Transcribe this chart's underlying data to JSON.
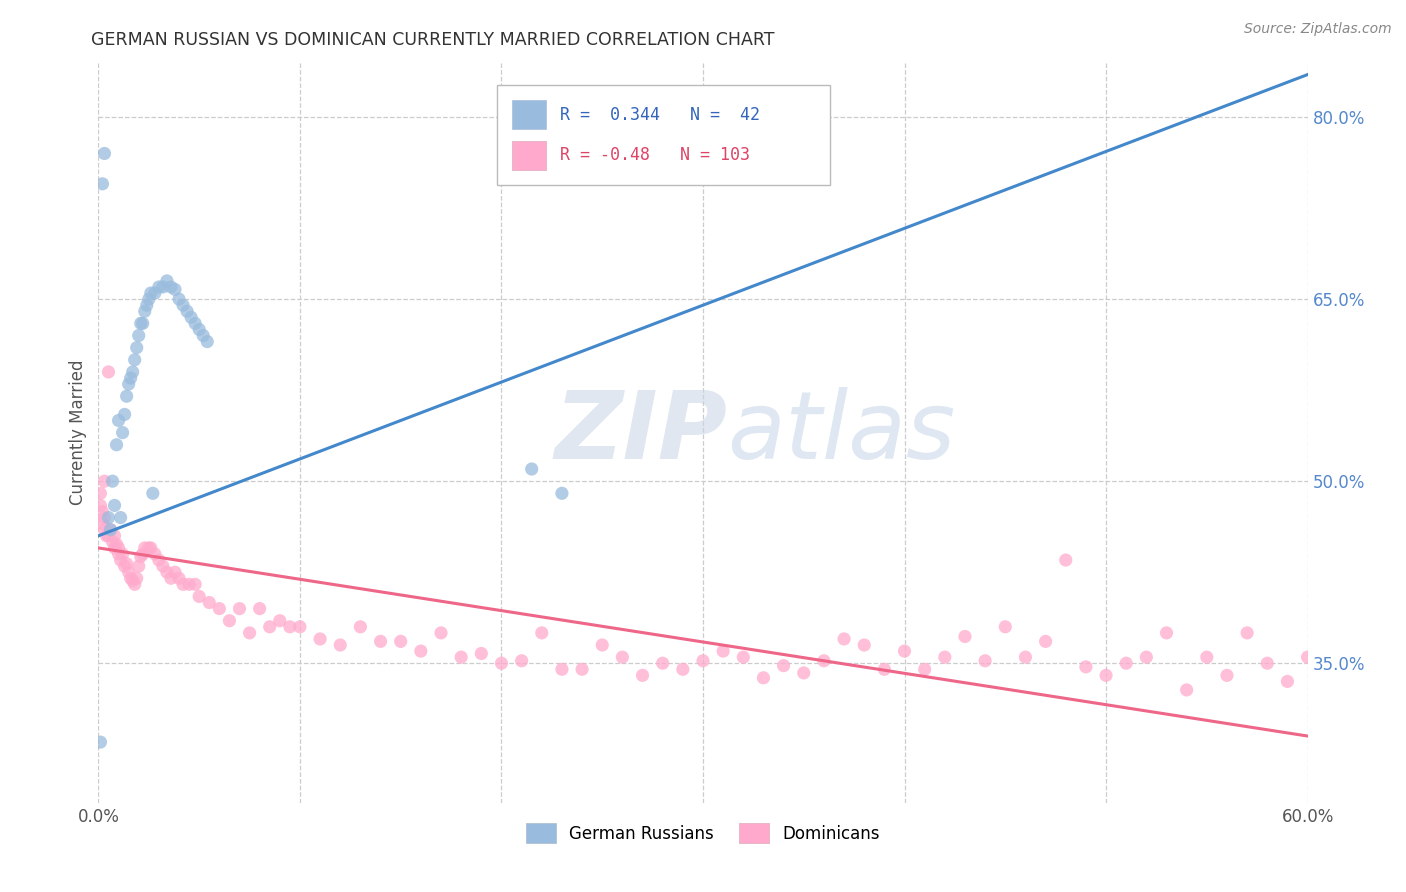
{
  "title": "GERMAN RUSSIAN VS DOMINICAN CURRENTLY MARRIED CORRELATION CHART",
  "source": "Source: ZipAtlas.com",
  "ylabel": "Currently Married",
  "xlim": [
    0.0,
    0.6
  ],
  "ylim": [
    0.235,
    0.845
  ],
  "x_ticks": [
    0.0,
    0.1,
    0.2,
    0.3,
    0.4,
    0.5,
    0.6
  ],
  "x_tick_labels": [
    "0.0%",
    "",
    "",
    "",
    "",
    "",
    "60.0%"
  ],
  "y_ticks_right": [
    0.35,
    0.5,
    0.65,
    0.8
  ],
  "y_tick_labels_right": [
    "35.0%",
    "50.0%",
    "65.0%",
    "80.0%"
  ],
  "legend_label1": "German Russians",
  "legend_label2": "Dominicans",
  "R1": 0.344,
  "N1": 42,
  "R2": -0.48,
  "N2": 103,
  "blue_color": "#99BBDD",
  "pink_color": "#FFAACC",
  "blue_line_color": "#4488CC",
  "pink_line_color": "#EE6688",
  "watermark_zip": "ZIP",
  "watermark_atlas": "atlas",
  "gr_x": [
    0.005,
    0.007,
    0.009,
    0.01,
    0.012,
    0.013,
    0.014,
    0.015,
    0.016,
    0.017,
    0.018,
    0.019,
    0.02,
    0.021,
    0.022,
    0.023,
    0.024,
    0.025,
    0.026,
    0.028,
    0.03,
    0.032,
    0.034,
    0.036,
    0.038,
    0.04,
    0.042,
    0.044,
    0.046,
    0.048,
    0.05,
    0.052,
    0.054,
    0.003,
    0.002,
    0.001,
    0.008,
    0.006,
    0.215,
    0.23,
    0.011,
    0.027
  ],
  "gr_y": [
    0.47,
    0.5,
    0.53,
    0.55,
    0.54,
    0.555,
    0.57,
    0.58,
    0.585,
    0.59,
    0.6,
    0.61,
    0.62,
    0.63,
    0.63,
    0.64,
    0.645,
    0.65,
    0.655,
    0.655,
    0.66,
    0.66,
    0.665,
    0.66,
    0.658,
    0.65,
    0.645,
    0.64,
    0.635,
    0.63,
    0.625,
    0.62,
    0.615,
    0.77,
    0.745,
    0.285,
    0.48,
    0.46,
    0.51,
    0.49,
    0.47,
    0.49
  ],
  "dom_x": [
    0.001,
    0.002,
    0.002,
    0.003,
    0.003,
    0.004,
    0.005,
    0.006,
    0.007,
    0.008,
    0.008,
    0.009,
    0.01,
    0.01,
    0.011,
    0.012,
    0.013,
    0.014,
    0.015,
    0.016,
    0.017,
    0.018,
    0.019,
    0.02,
    0.021,
    0.022,
    0.023,
    0.025,
    0.026,
    0.028,
    0.03,
    0.032,
    0.034,
    0.036,
    0.038,
    0.04,
    0.042,
    0.045,
    0.048,
    0.05,
    0.055,
    0.06,
    0.065,
    0.07,
    0.075,
    0.08,
    0.085,
    0.09,
    0.095,
    0.1,
    0.11,
    0.12,
    0.13,
    0.14,
    0.15,
    0.16,
    0.17,
    0.18,
    0.19,
    0.2,
    0.21,
    0.22,
    0.23,
    0.24,
    0.25,
    0.26,
    0.27,
    0.28,
    0.29,
    0.3,
    0.31,
    0.32,
    0.33,
    0.34,
    0.35,
    0.36,
    0.37,
    0.38,
    0.39,
    0.4,
    0.41,
    0.42,
    0.43,
    0.44,
    0.45,
    0.46,
    0.47,
    0.48,
    0.49,
    0.5,
    0.51,
    0.52,
    0.53,
    0.54,
    0.55,
    0.56,
    0.57,
    0.58,
    0.59,
    0.6,
    0.001,
    0.003,
    0.005
  ],
  "dom_y": [
    0.48,
    0.475,
    0.465,
    0.47,
    0.46,
    0.455,
    0.455,
    0.46,
    0.45,
    0.455,
    0.445,
    0.448,
    0.445,
    0.44,
    0.435,
    0.44,
    0.43,
    0.432,
    0.425,
    0.42,
    0.418,
    0.415,
    0.42,
    0.43,
    0.438,
    0.44,
    0.445,
    0.445,
    0.445,
    0.44,
    0.435,
    0.43,
    0.425,
    0.42,
    0.425,
    0.42,
    0.415,
    0.415,
    0.415,
    0.405,
    0.4,
    0.395,
    0.385,
    0.395,
    0.375,
    0.395,
    0.38,
    0.385,
    0.38,
    0.38,
    0.37,
    0.365,
    0.38,
    0.368,
    0.368,
    0.36,
    0.375,
    0.355,
    0.358,
    0.35,
    0.352,
    0.375,
    0.345,
    0.345,
    0.365,
    0.355,
    0.34,
    0.35,
    0.345,
    0.352,
    0.36,
    0.355,
    0.338,
    0.348,
    0.342,
    0.352,
    0.37,
    0.365,
    0.345,
    0.36,
    0.345,
    0.355,
    0.372,
    0.352,
    0.38,
    0.355,
    0.368,
    0.435,
    0.347,
    0.34,
    0.35,
    0.355,
    0.375,
    0.328,
    0.355,
    0.34,
    0.375,
    0.35,
    0.335,
    0.355,
    0.49,
    0.5,
    0.59
  ],
  "blue_line_x": [
    0.0,
    0.6
  ],
  "blue_line_y": [
    0.455,
    0.835
  ],
  "pink_line_x": [
    0.0,
    0.6
  ],
  "pink_line_y": [
    0.445,
    0.29
  ]
}
